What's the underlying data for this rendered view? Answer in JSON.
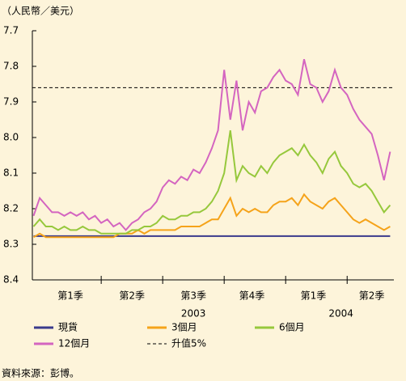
{
  "chart_data": {
    "type": "line",
    "y_axis_label": "（人民幣／美元）",
    "source": "資料來源：彭博。",
    "x": [
      -0.1,
      0,
      0.1,
      0.2,
      0.3,
      0.4,
      0.5,
      0.6,
      0.7,
      0.8,
      0.9,
      1,
      1.1,
      1.2,
      1.3,
      1.4,
      1.5,
      1.6,
      1.7,
      1.8,
      1.9,
      2,
      2.1,
      2.2,
      2.3,
      2.4,
      2.5,
      2.6,
      2.7,
      2.8,
      2.9,
      3,
      3.1,
      3.2,
      3.3,
      3.4,
      3.5,
      3.6,
      3.7,
      3.8,
      3.9,
      4,
      4.1,
      4.2,
      4.3,
      4.4,
      4.5,
      4.6,
      4.7,
      4.8,
      4.9,
      5,
      5.1,
      5.2,
      5.3,
      5.4,
      5.5,
      5.6,
      5.7
    ],
    "xlim": [
      -0.12,
      5.76
    ],
    "xticks": [
      {
        "value": 0.5,
        "label": "第1季"
      },
      {
        "value": 1.5,
        "label": "第2季"
      },
      {
        "value": 2.5,
        "label": "第3季"
      },
      {
        "value": 3.45,
        "label": "第4季"
      },
      {
        "value": 4.45,
        "label": "第1季"
      },
      {
        "value": 5.4,
        "label": "第2季"
      }
    ],
    "x_boundaries": [
      1,
      2,
      3,
      4,
      5
    ],
    "x_group_labels": [
      {
        "value": 2.5,
        "label": "2003"
      },
      {
        "value": 4.9,
        "label": "2004"
      }
    ],
    "ylim": [
      8.4,
      7.7
    ],
    "yticks": [
      7.7,
      7.8,
      7.9,
      {
        "value": 8,
        "label": "8.0"
      },
      8.1,
      8.2,
      8.3,
      8.4
    ],
    "series": [
      {
        "name": "現貨",
        "color": "#3a3a8c",
        "values": [
          8.277,
          8.277,
          8.277,
          8.277,
          8.277,
          8.277,
          8.277,
          8.277,
          8.277,
          8.277,
          8.277,
          8.277,
          8.277,
          8.277,
          8.277,
          8.277,
          8.277,
          8.277,
          8.277,
          8.277,
          8.277,
          8.277,
          8.277,
          8.277,
          8.277,
          8.277,
          8.277,
          8.277,
          8.277,
          8.277,
          8.277,
          8.277,
          8.277,
          8.277,
          8.277,
          8.277,
          8.277,
          8.277,
          8.277,
          8.277,
          8.277,
          8.277,
          8.277,
          8.277,
          8.277,
          8.277,
          8.277,
          8.277,
          8.277,
          8.277,
          8.277,
          8.277,
          8.277,
          8.277,
          8.277,
          8.277,
          8.277,
          8.277,
          8.277
        ]
      },
      {
        "name": "3個月",
        "color": "#f5a31a",
        "values": [
          8.28,
          8.27,
          8.28,
          8.28,
          8.28,
          8.28,
          8.28,
          8.28,
          8.28,
          8.28,
          8.28,
          8.28,
          8.28,
          8.28,
          8.27,
          8.27,
          8.27,
          8.26,
          8.27,
          8.26,
          8.26,
          8.26,
          8.26,
          8.26,
          8.25,
          8.25,
          8.25,
          8.25,
          8.24,
          8.23,
          8.23,
          8.2,
          8.17,
          8.22,
          8.2,
          8.21,
          8.2,
          8.21,
          8.21,
          8.19,
          8.18,
          8.18,
          8.17,
          8.19,
          8.16,
          8.18,
          8.19,
          8.2,
          8.18,
          8.17,
          8.19,
          8.21,
          8.23,
          8.24,
          8.23,
          8.24,
          8.25,
          8.26,
          8.25
        ]
      },
      {
        "name": "6個月",
        "color": "#96c83c",
        "values": [
          8.25,
          8.23,
          8.25,
          8.25,
          8.26,
          8.25,
          8.26,
          8.26,
          8.25,
          8.26,
          8.26,
          8.27,
          8.27,
          8.27,
          8.27,
          8.27,
          8.26,
          8.26,
          8.25,
          8.25,
          8.24,
          8.22,
          8.23,
          8.23,
          8.22,
          8.22,
          8.21,
          8.21,
          8.2,
          8.18,
          8.15,
          8.1,
          7.98,
          8.12,
          8.08,
          8.1,
          8.11,
          8.08,
          8.1,
          8.07,
          8.05,
          8.04,
          8.03,
          8.05,
          8.02,
          8.05,
          8.07,
          8.1,
          8.06,
          8.04,
          8.08,
          8.1,
          8.13,
          8.14,
          8.13,
          8.15,
          8.18,
          8.21,
          8.19
        ]
      },
      {
        "name": "12個月",
        "color": "#d465c0",
        "values": [
          8.22,
          8.17,
          8.19,
          8.21,
          8.21,
          8.22,
          8.21,
          8.22,
          8.21,
          8.23,
          8.22,
          8.24,
          8.23,
          8.25,
          8.24,
          8.26,
          8.24,
          8.23,
          8.21,
          8.2,
          8.18,
          8.14,
          8.12,
          8.13,
          8.11,
          8.12,
          8.09,
          8.1,
          8.07,
          8.03,
          7.98,
          7.81,
          7.95,
          7.84,
          7.98,
          7.9,
          7.93,
          7.87,
          7.86,
          7.83,
          7.81,
          7.84,
          7.85,
          7.88,
          7.78,
          7.85,
          7.86,
          7.9,
          7.87,
          7.81,
          7.86,
          7.88,
          7.92,
          7.95,
          7.97,
          7.99,
          8.05,
          8.12,
          8.04
        ]
      }
    ],
    "reference_line": {
      "name": "升值5%",
      "value": 7.86,
      "color": "#000000"
    }
  }
}
